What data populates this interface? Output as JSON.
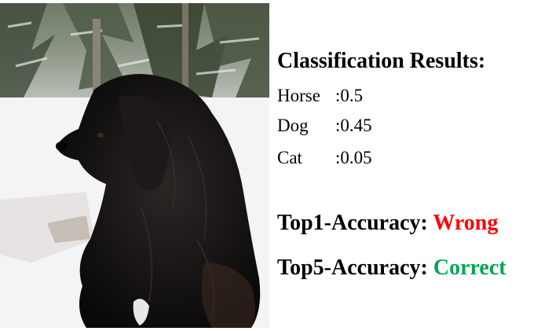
{
  "photo": {
    "subject": "dog-photo"
  },
  "results": {
    "title": "Classification Results:",
    "items": [
      {
        "label": "Horse",
        "score": ":0.5"
      },
      {
        "label": "Dog",
        "score": ":0.45"
      },
      {
        "label": "Cat",
        "score": ":0.05"
      }
    ]
  },
  "accuracy": {
    "top1": {
      "label": "Top1-Accuracy: ",
      "value": "Wrong",
      "color": "#ff0000"
    },
    "top5": {
      "label": "Top5-Accuracy: ",
      "value": "Correct",
      "color": "#00a651"
    }
  }
}
